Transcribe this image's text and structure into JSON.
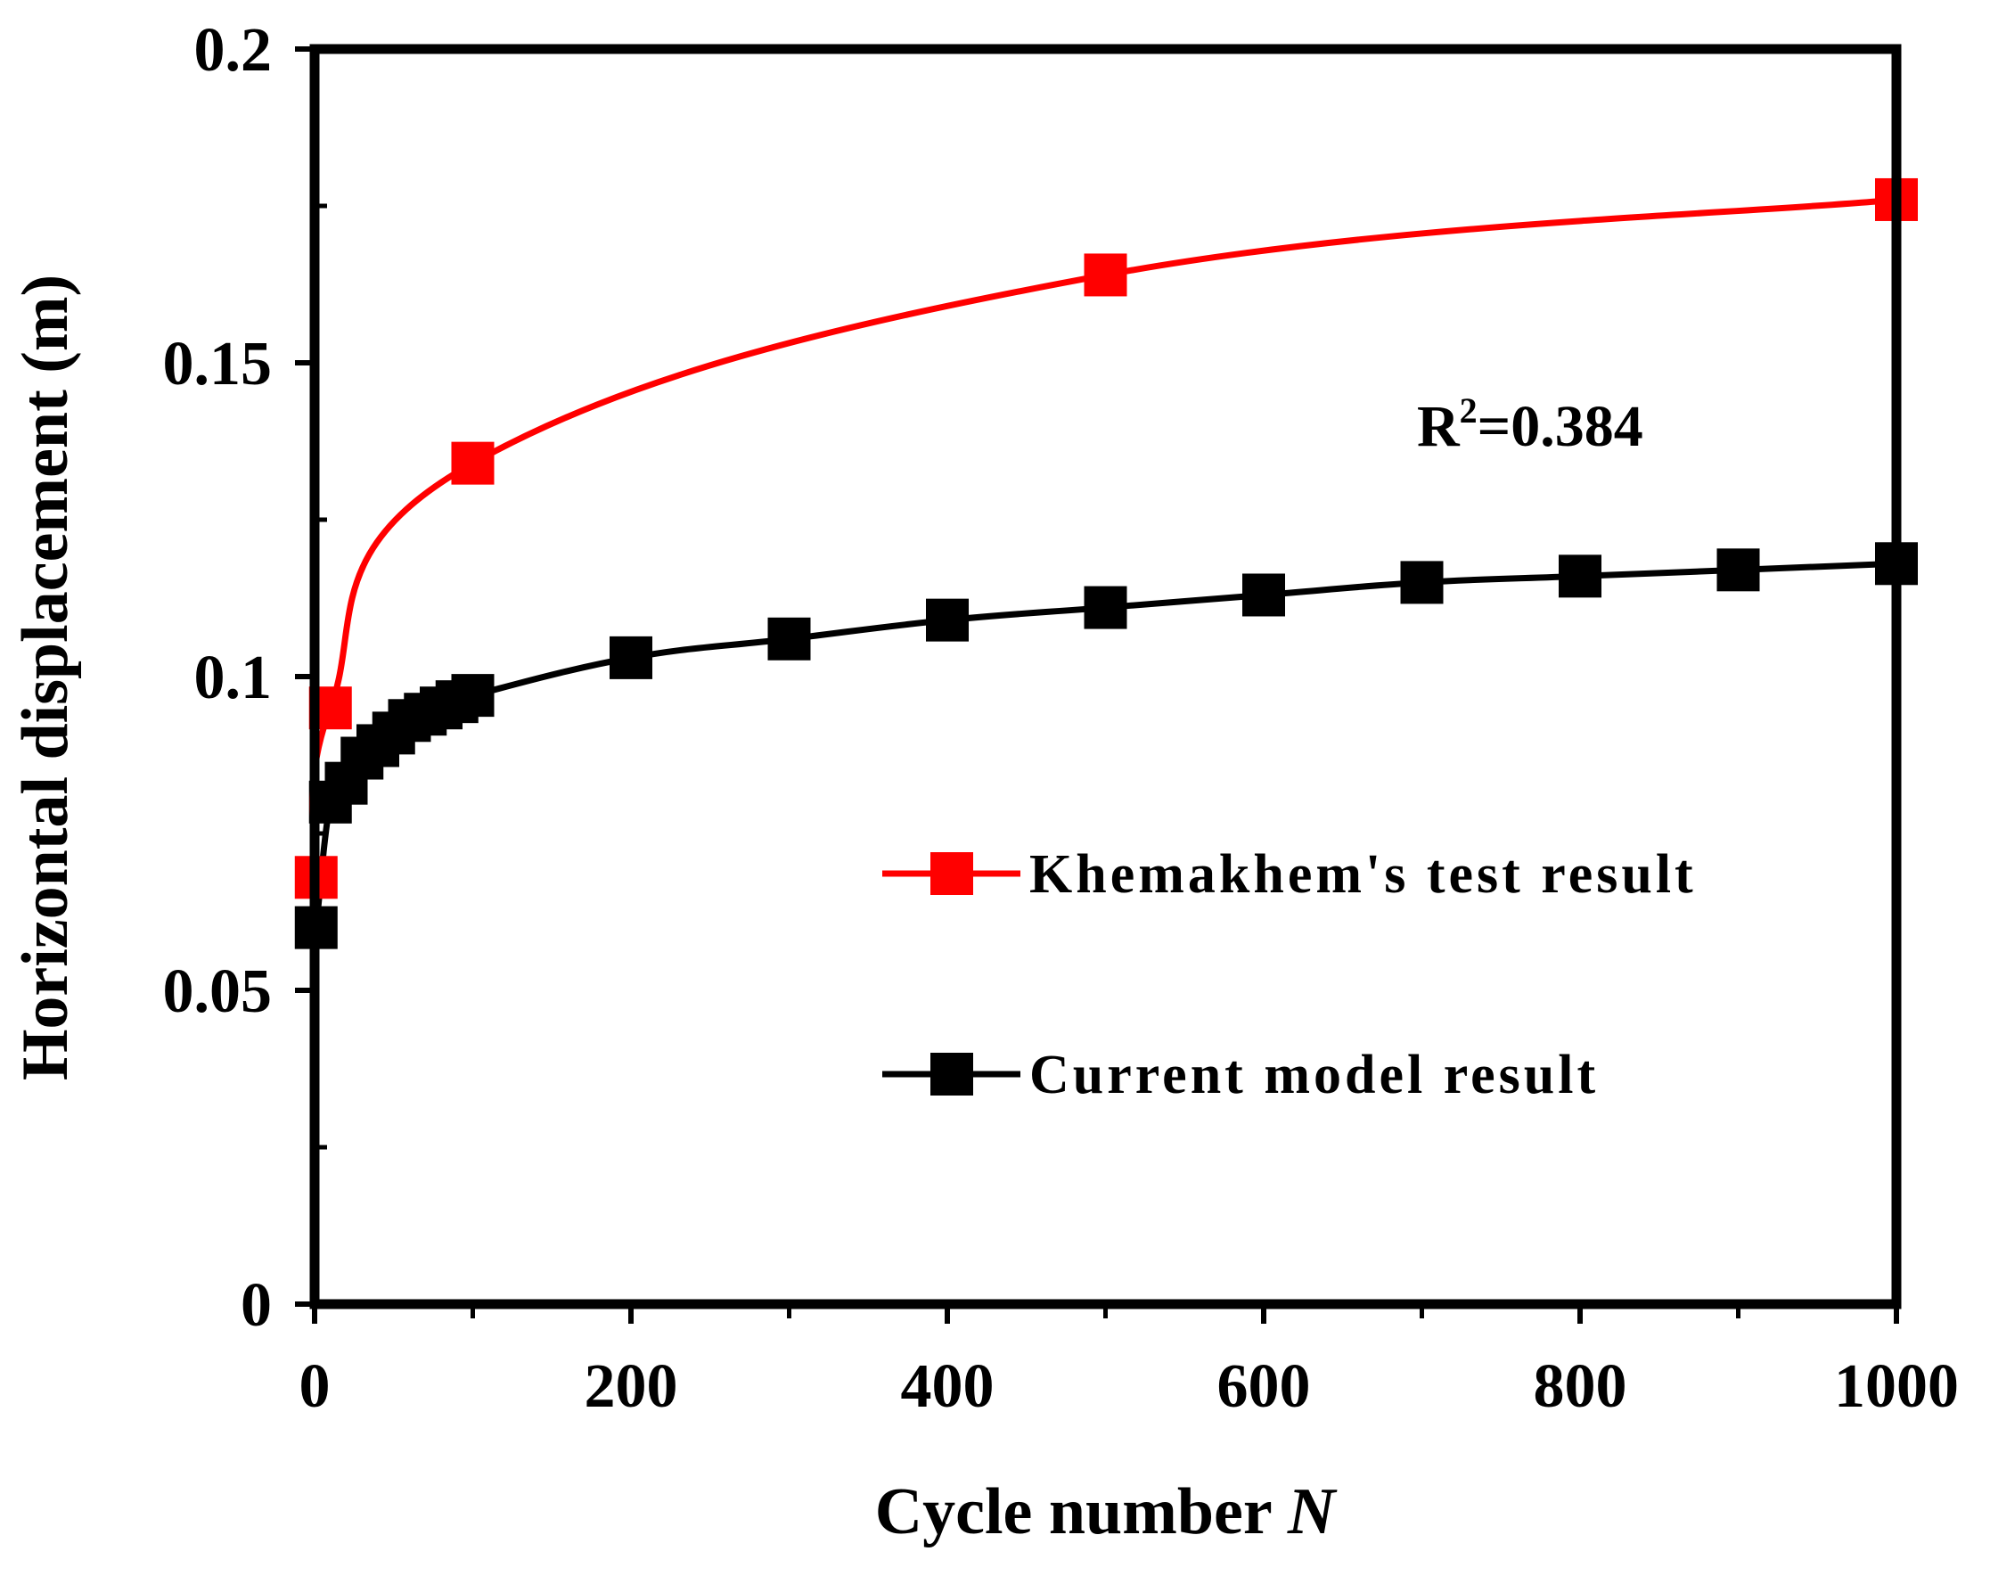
{
  "chart_data": {
    "type": "line",
    "title": "",
    "xlabel": "Cycle number",
    "xlabel_var": "N",
    "ylabel": "Horizontal displacement",
    "ylabel_unit": "(m)",
    "xlim": [
      0,
      1000
    ],
    "ylim": [
      0,
      0.2
    ],
    "xticks": [
      0,
      200,
      400,
      600,
      800,
      1000
    ],
    "xtick_labels": [
      "0",
      "200",
      "400",
      "600",
      "800",
      "1000"
    ],
    "yticks": [
      0,
      0.05,
      0.1,
      0.15,
      0.2
    ],
    "ytick_labels": [
      "0",
      "0.05",
      "0.1",
      "0.15",
      "0.2"
    ],
    "grid": false,
    "legend_position": "right",
    "annotation": {
      "base": "R",
      "sup": "2",
      "rest": "=0.384"
    },
    "series": [
      {
        "name": "Khemakhem's test result",
        "color": "#ff0000",
        "marker": "square",
        "x": [
          1,
          10,
          100,
          500,
          1000
        ],
        "y": [
          0.068,
          0.095,
          0.134,
          0.164,
          0.176
        ]
      },
      {
        "name": "Current model result",
        "color": "#000000",
        "marker": "square",
        "x": [
          1,
          10,
          20,
          30,
          40,
          50,
          60,
          70,
          80,
          90,
          100,
          200,
          300,
          400,
          500,
          600,
          700,
          800,
          900,
          1000
        ],
        "y": [
          0.06,
          0.08,
          0.083,
          0.087,
          0.089,
          0.091,
          0.093,
          0.094,
          0.095,
          0.096,
          0.097,
          0.103,
          0.106,
          0.109,
          0.111,
          0.113,
          0.115,
          0.116,
          0.117,
          0.118
        ]
      }
    ]
  }
}
